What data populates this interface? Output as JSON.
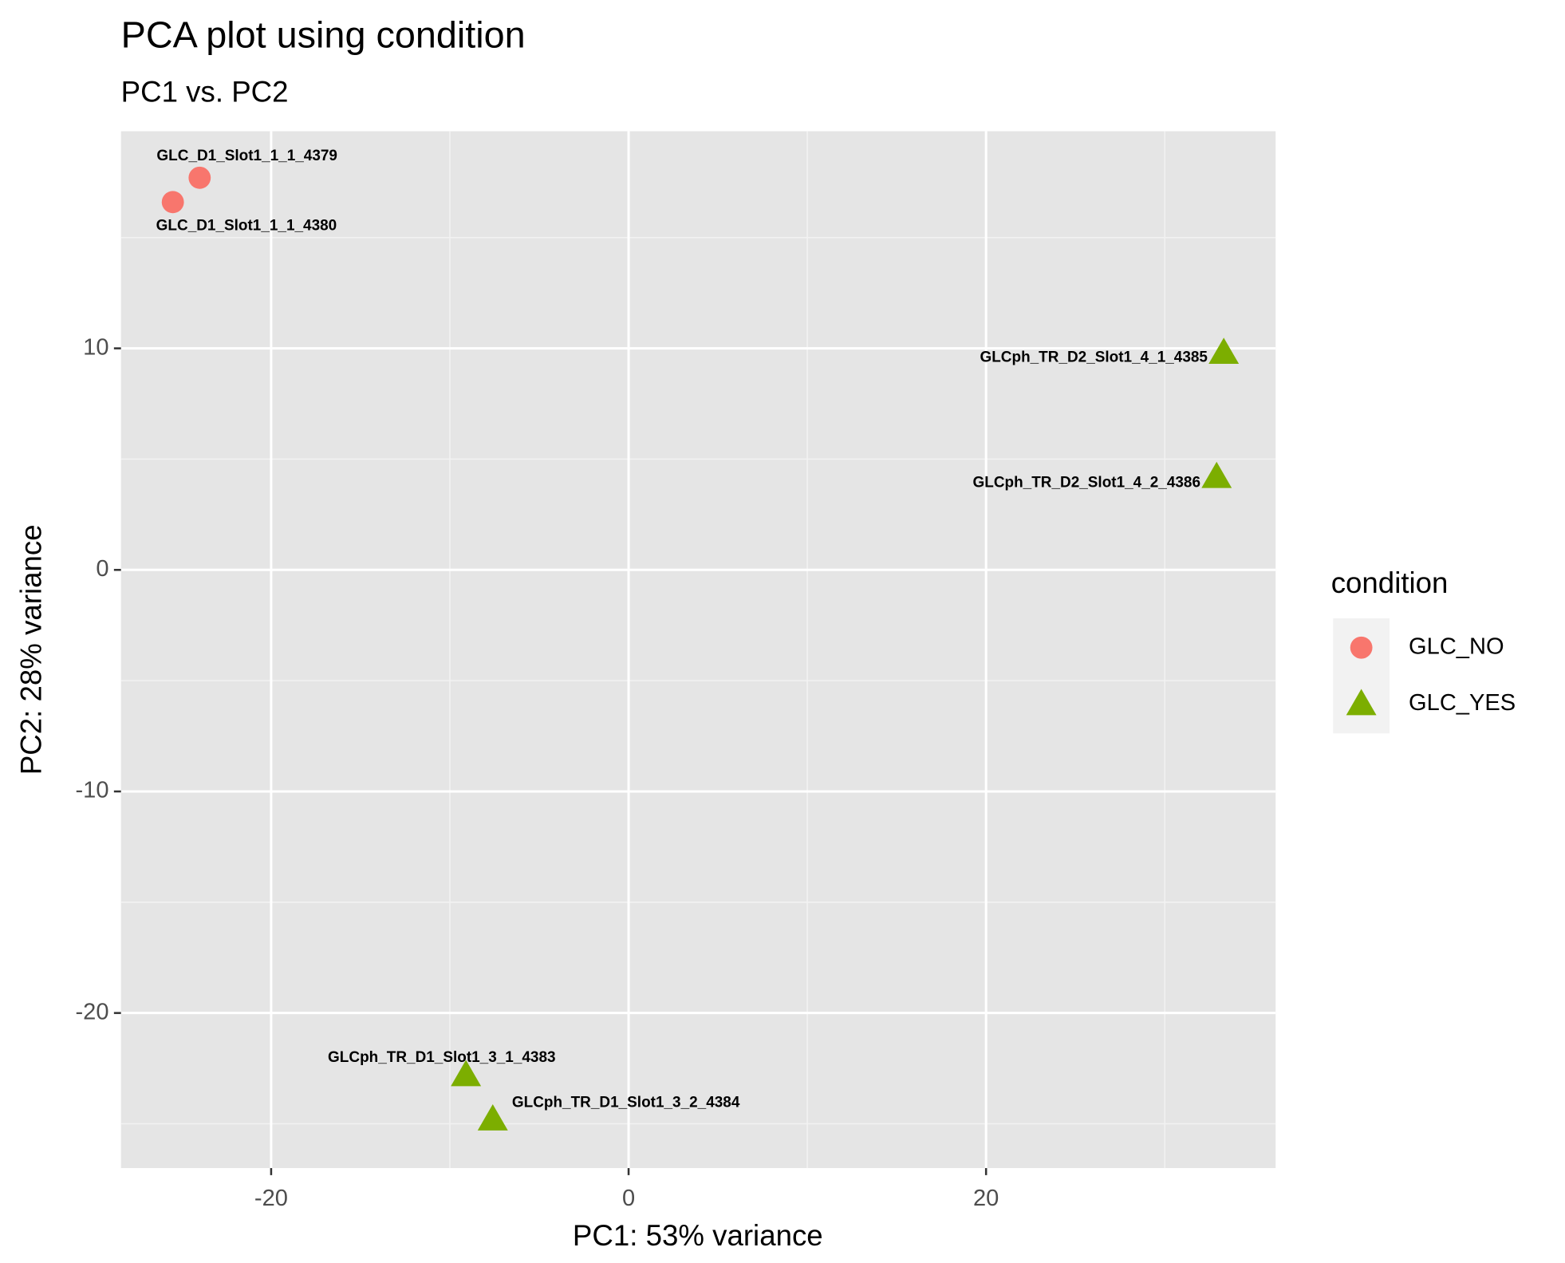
{
  "chart_data": {
    "type": "scatter",
    "title": "PCA plot using condition",
    "subtitle": "PC1 vs. PC2",
    "x_label": "PC1: 53% variance",
    "y_label": "PC2: 28% variance",
    "legend_title": "condition",
    "xlim": [
      -28.4,
      36.2
    ],
    "xticks": [
      -20,
      0,
      20
    ],
    "xminor": [
      -10,
      10,
      30
    ],
    "ylim": [
      -27.0,
      19.8
    ],
    "yticks": [
      -20,
      -10,
      0,
      10
    ],
    "yminor": [
      -25,
      -15,
      -5,
      5,
      15
    ],
    "grid": true,
    "legend": "right",
    "series": [
      {
        "name": "GLC_NO",
        "color": "#F8766D",
        "shape": "circle",
        "x": [
          -24.0,
          -25.5
        ],
        "values": [
          17.7,
          16.6
        ],
        "labels": [
          "GLC_D1_Slot1_1_1_4379",
          "GLC_D1_Slot1_1_1_4380"
        ]
      },
      {
        "name": "GLC_YES",
        "color": "#7CAE00",
        "shape": "triangle",
        "x": [
          33.3,
          32.9,
          -9.1,
          -7.6
        ],
        "values": [
          9.8,
          4.2,
          -22.8,
          -24.8
        ],
        "labels": [
          "GLCph_TR_D2_Slot1_4_1_4385",
          "GLCph_TR_D2_Slot1_4_2_4386",
          "GLCph_TR_D1_Slot1_3_1_4383",
          "GLCph_TR_D1_Slot1_3_2_4384"
        ]
      }
    ]
  }
}
